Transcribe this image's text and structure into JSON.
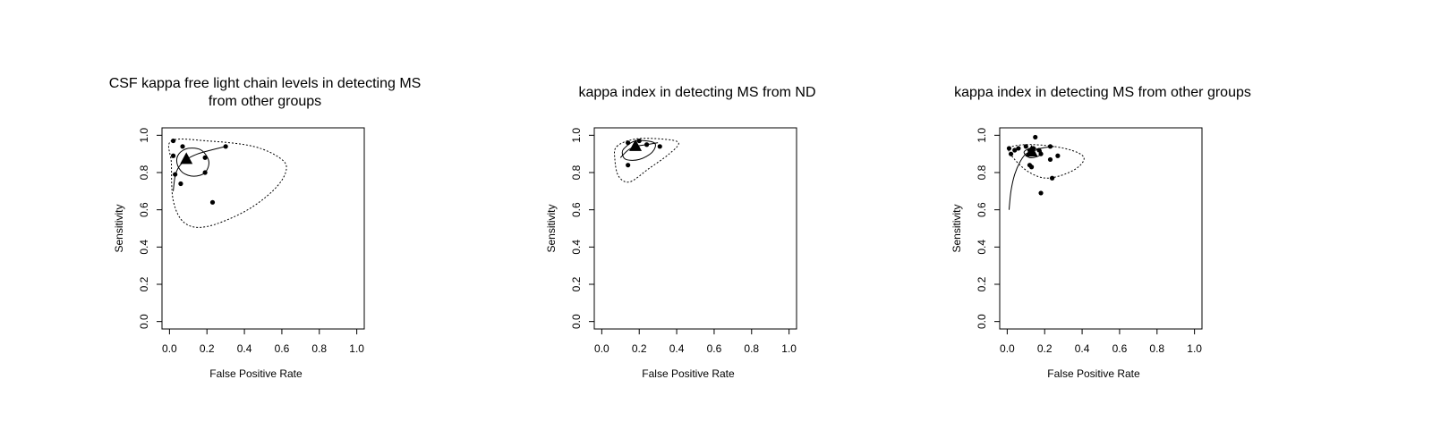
{
  "chart_data": [
    {
      "type": "sroc",
      "title": [
        "CSF kappa free light chain levels in detecting MS",
        "from other groups"
      ],
      "xlabel": "False Positive Rate",
      "ylabel": "Sensitivity",
      "xlim": [
        -0.04,
        1.04
      ],
      "ylim": [
        -0.04,
        1.04
      ],
      "xticks": [
        {
          "value": 0,
          "label": "0.0"
        },
        0.2,
        0.4,
        0.6,
        0.8,
        {
          "value": 1,
          "label": "1.0"
        }
      ],
      "yticks": [
        {
          "value": 0,
          "label": "0.0"
        },
        0.2,
        0.4,
        0.6,
        0.8,
        {
          "value": 1,
          "label": "1.0"
        }
      ],
      "color": "#000000",
      "points": {
        "x": [
          0.02,
          0.02,
          0.07,
          0.3,
          0.19,
          0.19,
          0.03,
          0.06,
          0.23
        ],
        "y": [
          0.97,
          0.89,
          0.94,
          0.94,
          0.88,
          0.8,
          0.79,
          0.74,
          0.64
        ]
      },
      "summary": {
        "x": [
          0.09
        ],
        "y": [
          0.87
        ]
      },
      "confidence_region": {
        "x": [
          0.05,
          0.1,
          0.17,
          0.21,
          0.19,
          0.13,
          0.07,
          0.04
        ],
        "y": [
          0.9,
          0.93,
          0.92,
          0.86,
          0.8,
          0.78,
          0.8,
          0.85
        ]
      },
      "prediction_region": {
        "x": [
          0.01,
          0.2,
          0.45,
          0.6,
          0.62,
          0.55,
          0.4,
          0.2,
          0.08,
          0.02,
          0.01
        ],
        "y": [
          0.97,
          0.97,
          0.94,
          0.87,
          0.8,
          0.7,
          0.59,
          0.51,
          0.53,
          0.65,
          0.85
        ]
      },
      "sroc_curve": {
        "x": [
          0.02,
          0.03,
          0.05,
          0.09,
          0.15,
          0.22,
          0.3
        ],
        "y": [
          0.7,
          0.78,
          0.83,
          0.87,
          0.9,
          0.92,
          0.94
        ]
      }
    },
    {
      "type": "sroc",
      "title": [
        "kappa index in detecting MS from ND"
      ],
      "xlabel": "False Positive Rate",
      "ylabel": "Sensitivity",
      "xlim": [
        -0.04,
        1.04
      ],
      "ylim": [
        -0.04,
        1.04
      ],
      "xticks": [
        {
          "value": 0,
          "label": "0.0"
        },
        0.2,
        0.4,
        0.6,
        0.8,
        {
          "value": 1,
          "label": "1.0"
        }
      ],
      "yticks": [
        {
          "value": 0,
          "label": "0.0"
        },
        0.2,
        0.4,
        0.6,
        0.8,
        {
          "value": 1,
          "label": "1.0"
        }
      ],
      "color": "#000000",
      "points": {
        "x": [
          0.14,
          0.2,
          0.24,
          0.31,
          0.14
        ],
        "y": [
          0.96,
          0.97,
          0.95,
          0.94,
          0.84
        ]
      },
      "summary": {
        "x": [
          0.18
        ],
        "y": [
          0.94
        ]
      },
      "confidence_region": {
        "x": [
          0.12,
          0.18,
          0.28,
          0.27,
          0.2,
          0.13,
          0.11
        ],
        "y": [
          0.93,
          0.97,
          0.96,
          0.91,
          0.87,
          0.87,
          0.9
        ]
      },
      "prediction_region": {
        "x": [
          0.08,
          0.18,
          0.32,
          0.41,
          0.36,
          0.25,
          0.15,
          0.09,
          0.07
        ],
        "y": [
          0.94,
          0.98,
          0.98,
          0.96,
          0.9,
          0.82,
          0.75,
          0.78,
          0.87
        ]
      },
      "sroc_curve": {
        "x": [
          0.1,
          0.14,
          0.18,
          0.24,
          0.3
        ],
        "y": [
          0.88,
          0.92,
          0.94,
          0.95,
          0.96
        ]
      }
    },
    {
      "type": "sroc",
      "title": [
        "kappa index in detecting MS from other groups"
      ],
      "xlabel": "False Positive Rate",
      "ylabel": "Sensitivity",
      "xlim": [
        -0.04,
        1.04
      ],
      "ylim": [
        -0.04,
        1.04
      ],
      "xticks": [
        {
          "value": 0,
          "label": "0.0"
        },
        0.2,
        0.4,
        0.6,
        0.8,
        {
          "value": 1,
          "label": "1.0"
        }
      ],
      "yticks": [
        {
          "value": 0,
          "label": "0.0"
        },
        0.2,
        0.4,
        0.6,
        0.8,
        {
          "value": 1,
          "label": "1.0"
        }
      ],
      "color": "#000000",
      "points": {
        "x": [
          0.01,
          0.02,
          0.04,
          0.06,
          0.1,
          0.12,
          0.13,
          0.14,
          0.15,
          0.17,
          0.12,
          0.13,
          0.23,
          0.23,
          0.27,
          0.24,
          0.18,
          0.18
        ],
        "y": [
          0.93,
          0.9,
          0.92,
          0.93,
          0.94,
          0.92,
          0.9,
          0.93,
          0.99,
          0.92,
          0.84,
          0.83,
          0.94,
          0.87,
          0.89,
          0.77,
          0.69,
          0.9
        ]
      },
      "summary": {
        "x": [
          0.13
        ],
        "y": [
          0.91
        ]
      },
      "confidence_region": {
        "x": [
          0.09,
          0.13,
          0.18,
          0.17,
          0.12
        ],
        "y": [
          0.91,
          0.93,
          0.92,
          0.89,
          0.88
        ]
      },
      "prediction_region": {
        "x": [
          0.01,
          0.1,
          0.25,
          0.37,
          0.41,
          0.35,
          0.22,
          0.12,
          0.04
        ],
        "y": [
          0.93,
          0.95,
          0.94,
          0.91,
          0.87,
          0.81,
          0.77,
          0.8,
          0.87
        ]
      },
      "sroc_curve": {
        "x": [
          0.01,
          0.02,
          0.04,
          0.07,
          0.1,
          0.13,
          0.18,
          0.25
        ],
        "y": [
          0.6,
          0.7,
          0.79,
          0.86,
          0.9,
          0.91,
          0.93,
          0.94
        ]
      }
    }
  ]
}
